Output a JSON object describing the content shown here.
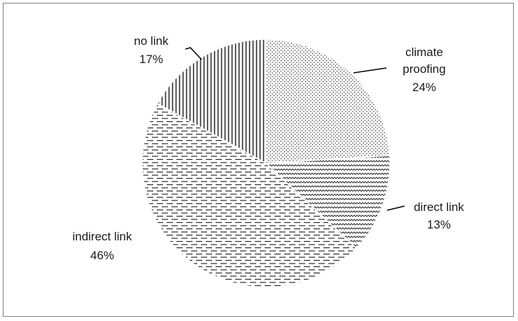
{
  "chart_data": {
    "type": "pie",
    "title": "",
    "start_angle_deg": 0,
    "direction": "clockwise",
    "slices": [
      {
        "label": "climate proofing",
        "label_lines": [
          "climate",
          "proofing"
        ],
        "percent_text": "24%",
        "value": 24,
        "pattern": "dots"
      },
      {
        "label": "direct link",
        "label_lines": [
          "direct link"
        ],
        "percent_text": "13%",
        "value": 13,
        "pattern": "waves"
      },
      {
        "label": "indirect link",
        "label_lines": [
          "indirect link"
        ],
        "percent_text": "46%",
        "value": 46,
        "pattern": "dashes"
      },
      {
        "label": "no link",
        "label_lines": [
          "no link"
        ],
        "percent_text": "17%",
        "value": 17,
        "pattern": "vertical-lines"
      }
    ],
    "legend": "none",
    "colors": {
      "fill_base": "#ffffff",
      "pattern_ink": "#2b2b2b",
      "edge": "#ffffff"
    }
  }
}
